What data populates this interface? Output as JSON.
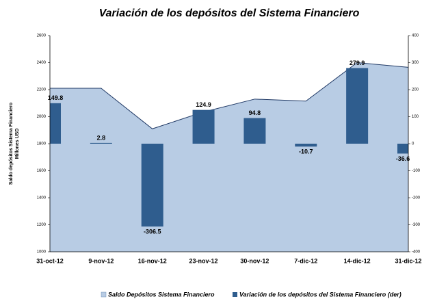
{
  "chart_data": {
    "type": "combo",
    "title": "Variación de los depósitos del Sistema Financiero",
    "ylabel": [
      "Saldo depósitos Sistema Financiero",
      "Millones USD"
    ],
    "categories": [
      "31-oct-12",
      "9-nov-12",
      "16-nov-12",
      "23-nov-12",
      "30-nov-12",
      "7-dic-12",
      "14-dic-12",
      "31-dic-12"
    ],
    "series": [
      {
        "name": "Saldo Depósitos Sistema Financiero",
        "type": "area",
        "color": "#b8cce4",
        "line_color": "#1f3864",
        "values": [
          2210,
          2210,
          1910,
          2035,
          2130,
          2115,
          2400,
          2365
        ]
      },
      {
        "name": "Variación de los depósitos del Sistema Financiero (der)",
        "type": "bar",
        "axis": "y2",
        "color": "#2f5d8e",
        "values": [
          149.8,
          2.8,
          -306.5,
          124.9,
          94.8,
          -10.7,
          279.9,
          -36.6
        ]
      }
    ],
    "ylim": [
      1000,
      2600
    ],
    "yticks": [
      1000,
      1200,
      1400,
      1600,
      1800,
      2000,
      2200,
      2400,
      2600
    ],
    "y2lim": [
      -400,
      400
    ],
    "y2ticks": [
      -400,
      -300,
      -200,
      -100,
      0,
      100,
      200,
      300,
      400
    ]
  }
}
